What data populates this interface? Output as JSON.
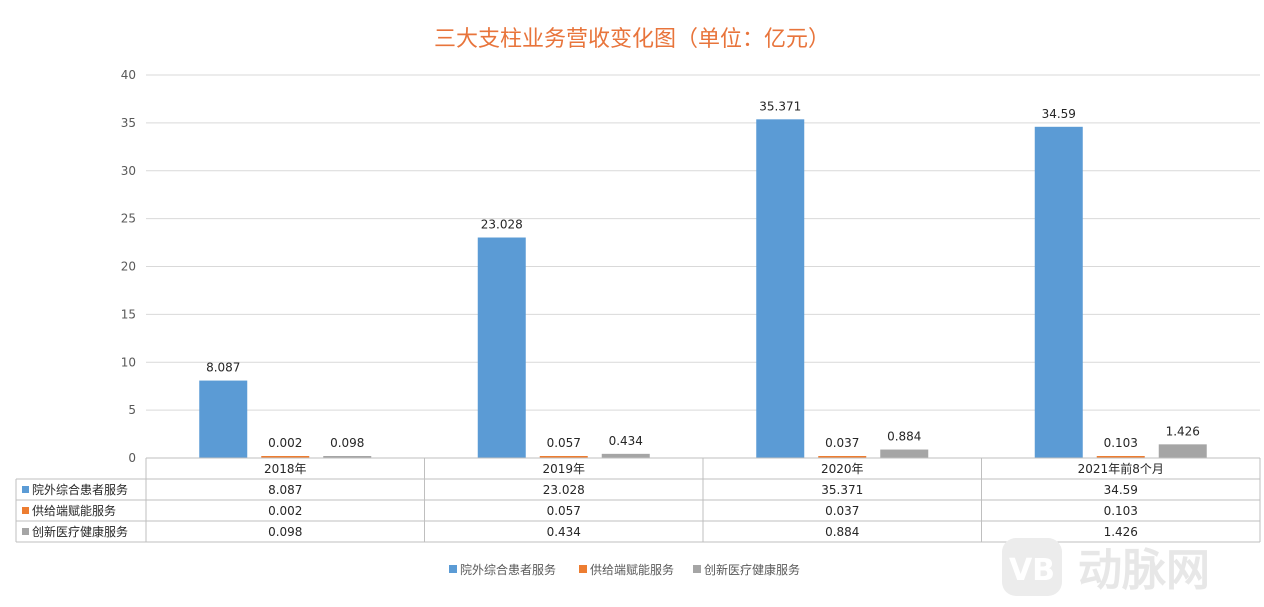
{
  "chart_data": {
    "type": "bar",
    "title": "三大支柱业务营收变化图（单位：亿元）",
    "categories": [
      "2018年",
      "2019年",
      "2020年",
      "2021年前8个月"
    ],
    "series": [
      {
        "name": "院外综合患者服务",
        "color": "#5B9BD5",
        "values": [
          8.087,
          23.028,
          35.371,
          34.59
        ],
        "labels": [
          "8.087",
          "23.028",
          "35.371",
          "34.59"
        ]
      },
      {
        "name": "供给端赋能服务",
        "color": "#ED7D31",
        "values": [
          0.002,
          0.057,
          0.037,
          0.103
        ],
        "labels": [
          "0.002",
          "0.057",
          "0.037",
          "0.103"
        ]
      },
      {
        "name": "创新医疗健康服务",
        "color": "#A5A5A5",
        "values": [
          0.098,
          0.434,
          0.884,
          1.426
        ],
        "labels": [
          "0.098",
          "0.434",
          "0.884",
          "1.426"
        ]
      }
    ],
    "ylim": [
      0,
      40
    ],
    "yticks": [
      "0",
      "5",
      "10",
      "15",
      "20",
      "25",
      "30",
      "35",
      "40"
    ],
    "grid": true,
    "legend_position": "bottom",
    "data_table": true
  },
  "watermark": {
    "text": "动脉网",
    "logo": "VB"
  }
}
